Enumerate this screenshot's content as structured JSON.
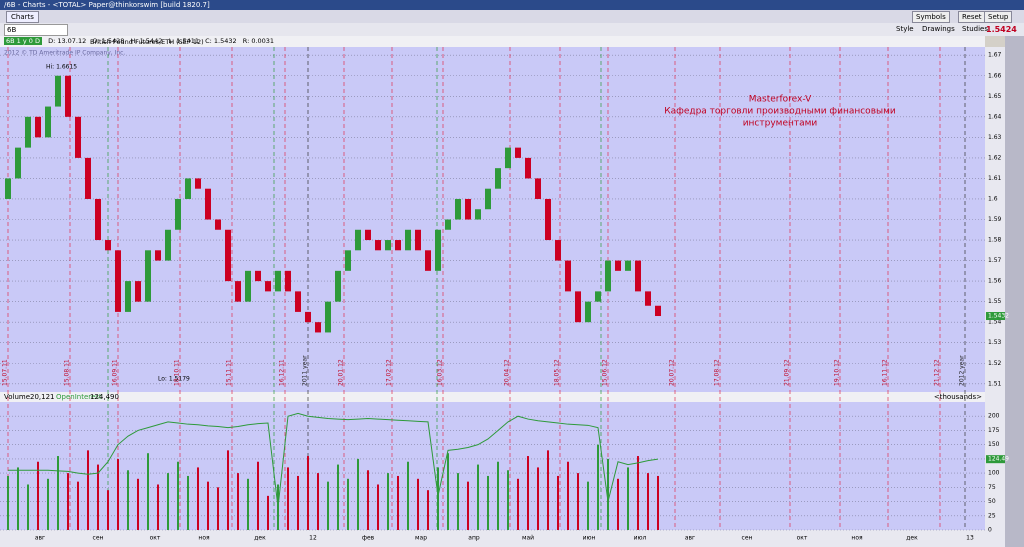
{
  "window_title": "/6B - Charts - <TOTAL> Paper@thinkorswim [build 1820.7]",
  "toolbar": {
    "tab": "Charts",
    "buttons": [
      "Symbols",
      "Reset",
      "Setup"
    ],
    "last_price": "1.5424"
  },
  "symbol_bar": {
    "symbol": "6B",
    "buttons": [
      "Style",
      "Drawings",
      "Studies"
    ]
  },
  "chart_header": {
    "settings": "6B 1 y 0 D",
    "instrument": "British Pound Futures,ETH (SEP 12)",
    "stats": [
      "D: 13.07.12",
      "O: 1.5428",
      "H: 1.5442",
      "L: 1.5411",
      "C: 1.5432",
      "R: 0.0031"
    ],
    "copyright": "2012 © TD Ameritrade IP Company, Inc."
  },
  "chart_data": [
    {
      "type": "candlestick",
      "categories": [
        null,
        null,
        null,
        null,
        null,
        null,
        null,
        null,
        null,
        null,
        null,
        null,
        null,
        null,
        null,
        null,
        null,
        null,
        null,
        null,
        null,
        null,
        null,
        null,
        null,
        null,
        null,
        null,
        null,
        null,
        null,
        null,
        null,
        null,
        null,
        null,
        null,
        null,
        null,
        null,
        null,
        null,
        null,
        null,
        null,
        null,
        null,
        null,
        null,
        null,
        null,
        null,
        null,
        null,
        null,
        null,
        null,
        null,
        null,
        null,
        null,
        null,
        null,
        null,
        null,
        null
      ],
      "open": [
        1.6,
        1.61,
        1.625,
        1.64,
        1.63,
        1.645,
        1.66,
        1.64,
        1.62,
        1.6,
        1.58,
        1.575,
        1.545,
        1.56,
        1.55,
        1.575,
        1.57,
        1.585,
        1.6,
        1.61,
        1.605,
        1.59,
        1.585,
        1.56,
        1.55,
        1.565,
        1.56,
        1.555,
        1.565,
        1.555,
        1.545,
        1.54,
        1.535,
        1.55,
        1.565,
        1.575,
        1.585,
        1.58,
        1.575,
        1.58,
        1.575,
        1.585,
        1.575,
        1.565,
        1.585,
        1.59,
        1.6,
        1.59,
        1.595,
        1.605,
        1.615,
        1.625,
        1.62,
        1.61,
        1.6,
        1.58,
        1.57,
        1.555,
        1.54,
        1.55,
        1.555,
        1.57,
        1.565,
        1.57,
        1.555,
        1.548
      ],
      "close": [
        1.61,
        1.625,
        1.64,
        1.63,
        1.645,
        1.66,
        1.64,
        1.62,
        1.6,
        1.58,
        1.575,
        1.545,
        1.56,
        1.55,
        1.575,
        1.57,
        1.585,
        1.6,
        1.61,
        1.605,
        1.59,
        1.585,
        1.56,
        1.55,
        1.565,
        1.56,
        1.555,
        1.565,
        1.555,
        1.545,
        1.54,
        1.535,
        1.55,
        1.565,
        1.575,
        1.585,
        1.58,
        1.575,
        1.58,
        1.575,
        1.585,
        1.575,
        1.565,
        1.585,
        1.59,
        1.6,
        1.59,
        1.595,
        1.605,
        1.615,
        1.625,
        1.62,
        1.61,
        1.6,
        1.58,
        1.57,
        1.555,
        1.54,
        1.55,
        1.555,
        1.57,
        1.565,
        1.57,
        1.555,
        1.548,
        1.543
      ],
      "up_color": "#2e9a3a",
      "down_color": "#cc0022",
      "ylim": [
        1.506,
        1.674
      ],
      "yticks": [
        1.51,
        1.52,
        1.53,
        1.54,
        1.55,
        1.56,
        1.57,
        1.58,
        1.59,
        1.6,
        1.61,
        1.62,
        1.63,
        1.64,
        1.65,
        1.66,
        1.67
      ],
      "grid": true,
      "last_label": "1.5432",
      "high_label": "Hi: 1.6615",
      "low_label": "Lo: 1.5179",
      "annotation": [
        "Masterforex-V",
        "Кафедра торговли производными финансовыми",
        "инструментами"
      ],
      "date_markers": [
        "15.07.11",
        "15.08.11",
        "16.09.11",
        "18.10.11",
        "15.11.11",
        "16.12.11",
        "2011 year",
        "20.01.12",
        "17.02.12",
        "16.03.12",
        "20.04.12",
        "18.05.12",
        "15.06.12",
        "20.07.12",
        "17.08.12",
        "21.09.12",
        "19.10.12",
        "16.11.12",
        "21.12.12",
        "2012 year"
      ],
      "months": [
        "авг",
        "сен",
        "окт",
        "ноя",
        "дек",
        "12",
        "фев",
        "мар",
        "апр",
        "май",
        "июн",
        "июл",
        "авг",
        "сен",
        "окт",
        "ноя",
        "дек",
        "13"
      ]
    },
    {
      "type": "bar",
      "title": "Volume",
      "volume_label": "20,121",
      "oi_label": "124,490",
      "units": "<thousands>",
      "last_label": "124.49",
      "categories": [
        null,
        null,
        null,
        null,
        null,
        null,
        null,
        null,
        null,
        null,
        null,
        null,
        null,
        null,
        null,
        null,
        null,
        null,
        null,
        null,
        null,
        null,
        null,
        null,
        null,
        null,
        null,
        null,
        null,
        null,
        null,
        null,
        null,
        null,
        null,
        null,
        null,
        null,
        null,
        null,
        null,
        null,
        null,
        null,
        null,
        null,
        null,
        null,
        null,
        null,
        null,
        null,
        null,
        null,
        null,
        null,
        null,
        null,
        null,
        null,
        null,
        null,
        null,
        null,
        null,
        null
      ],
      "series": [
        {
          "name": "Volume",
          "values": [
            95,
            110,
            80,
            120,
            90,
            130,
            100,
            85,
            140,
            115,
            70,
            125,
            105,
            90,
            135,
            80,
            100,
            120,
            95,
            110,
            85,
            75,
            140,
            100,
            90,
            120,
            60,
            80,
            110,
            95,
            130,
            100,
            85,
            115,
            90,
            125,
            105,
            80,
            100,
            95,
            120,
            90,
            70,
            110,
            135,
            100,
            85,
            115,
            95,
            120,
            105,
            90,
            130,
            110,
            140,
            95,
            120,
            100,
            85,
            150,
            125,
            90,
            110,
            130,
            100,
            95
          ]
        },
        {
          "name": "OpenInterest",
          "color": "#2e9a3a",
          "values": [
            105,
            105,
            105,
            105,
            105,
            104,
            103,
            100,
            98,
            100,
            120,
            150,
            165,
            175,
            180,
            185,
            190,
            188,
            186,
            185,
            183,
            182,
            180,
            182,
            185,
            187,
            188,
            40,
            200,
            205,
            200,
            198,
            196,
            195,
            194,
            195,
            196,
            195,
            194,
            193,
            192,
            191,
            190,
            60,
            140,
            142,
            145,
            150,
            160,
            175,
            190,
            200,
            195,
            192,
            190,
            188,
            186,
            185,
            184,
            180,
            50,
            120,
            115,
            118,
            122,
            124.49
          ]
        }
      ],
      "ylim": [
        0,
        225
      ],
      "yticks": [
        0,
        25,
        50,
        75,
        100,
        125,
        150,
        175,
        200
      ],
      "grid": true
    }
  ]
}
